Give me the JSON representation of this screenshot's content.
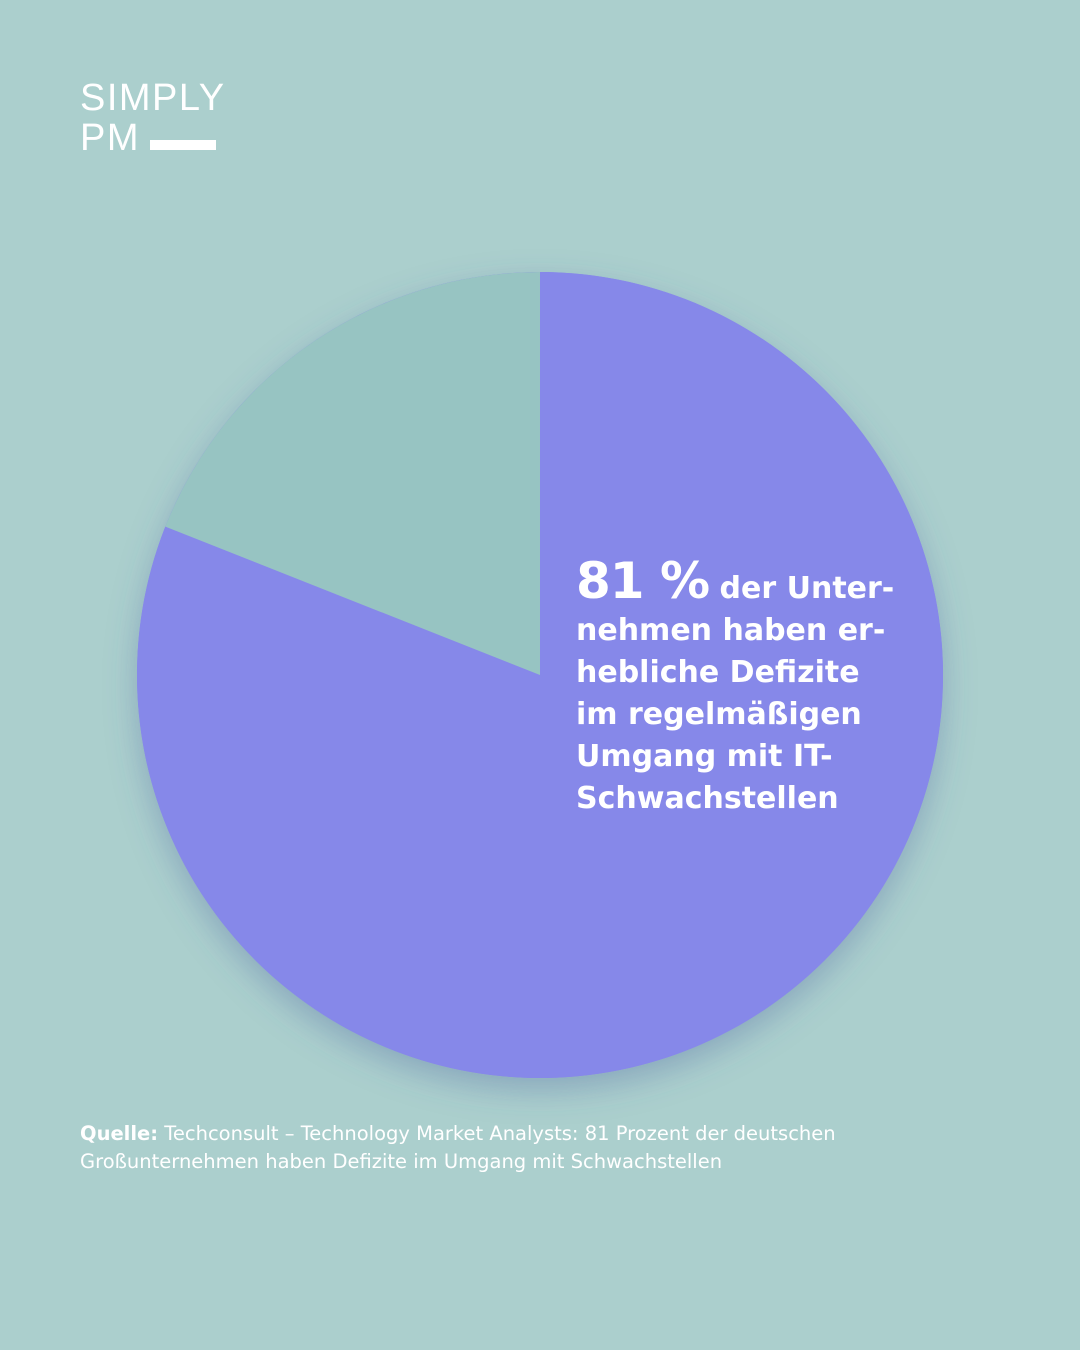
{
  "logo": {
    "line1": "SIMPLY",
    "line2": "PM"
  },
  "colors": {
    "background": "#abcfcd",
    "main_slice": "#8688e9",
    "rest_slice": "#97c4c2",
    "text": "#ffffff"
  },
  "chart_data": {
    "type": "pie",
    "slices": [
      {
        "value": 81,
        "color": "#8688e9"
      },
      {
        "value": 19,
        "color": "#97c4c2"
      }
    ]
  },
  "callout": {
    "percent": "81 %",
    "text": "der Unter-nehmen haben er-hebliche Defizite im regelmäßigen Umgang mit IT-Schwachstellen"
  },
  "source": {
    "label": "Quelle:",
    "text": "Techconsult – Technology Market Analysts: 81 Prozent der deutschen Großunternehmen haben Defizite im Umgang mit Schwachstellen"
  }
}
